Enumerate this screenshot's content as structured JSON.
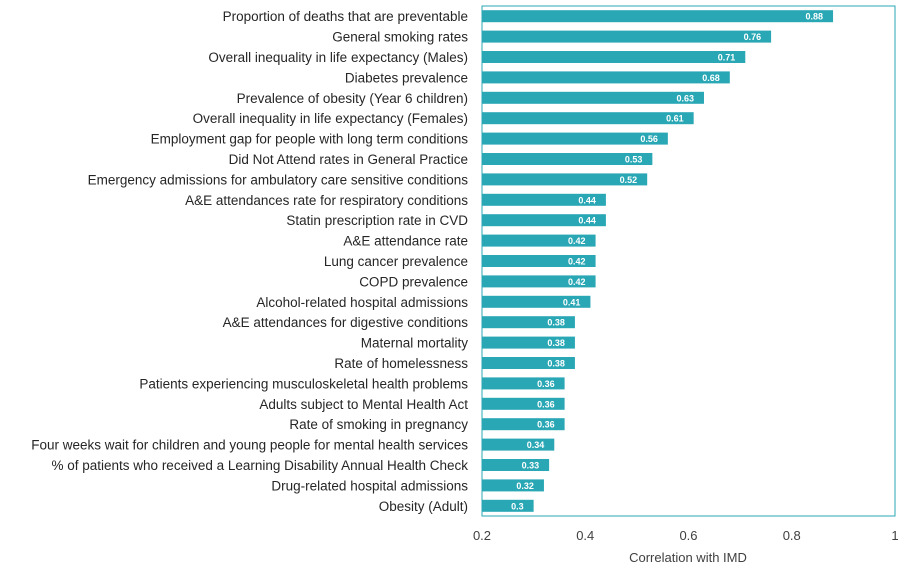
{
  "chart_data": {
    "type": "bar",
    "orientation": "horizontal",
    "categories": [
      "Proportion of deaths that are preventable",
      "General smoking rates",
      "Overall inequality in life expectancy (Males)",
      "Diabetes prevalence",
      "Prevalence of obesity (Year 6 children)",
      "Overall inequality in life expectancy (Females)",
      "Employment gap for people with long term conditions",
      "Did Not Attend rates in General Practice",
      "Emergency admissions for ambulatory care sensitive conditions",
      "A&E attendances rate for respiratory conditions",
      "Statin prescription rate in CVD",
      "A&E attendance rate",
      "Lung cancer prevalence",
      "COPD prevalence",
      "Alcohol-related hospital admissions",
      "A&E attendances for digestive conditions",
      "Maternal mortality",
      "Rate of homelessness",
      "Patients experiencing musculoskeletal health problems",
      "Adults subject to Mental Health Act",
      "Rate of smoking in pregnancy",
      "Four weeks wait for children and young people for mental health services",
      "% of patients who received a Learning Disability Annual Health Check",
      "Drug-related hospital admissions",
      "Obesity (Adult)"
    ],
    "values": [
      0.88,
      0.76,
      0.71,
      0.68,
      0.63,
      0.61,
      0.56,
      0.53,
      0.52,
      0.44,
      0.44,
      0.42,
      0.42,
      0.42,
      0.41,
      0.38,
      0.38,
      0.38,
      0.36,
      0.36,
      0.36,
      0.34,
      0.33,
      0.32,
      0.3
    ],
    "value_labels": [
      "0.88",
      "0.76",
      "0.71",
      "0.68",
      "0.63",
      "0.61",
      "0.56",
      "0.53",
      "0.52",
      "0.44",
      "0.44",
      "0.42",
      "0.42",
      "0.42",
      "0.41",
      "0.38",
      "0.38",
      "0.38",
      "0.36",
      "0.36",
      "0.36",
      "0.34",
      "0.33",
      "0.32",
      "0.3"
    ],
    "x_ticks": [
      "0.2",
      "0.4",
      "0.6",
      "0.8",
      "1"
    ],
    "xlabel": "Correlation with IMD",
    "xlim": [
      0.2,
      1.0
    ],
    "grid": false,
    "bar_color": "#2aa7b5",
    "frame_color": "#2aa7b5"
  }
}
